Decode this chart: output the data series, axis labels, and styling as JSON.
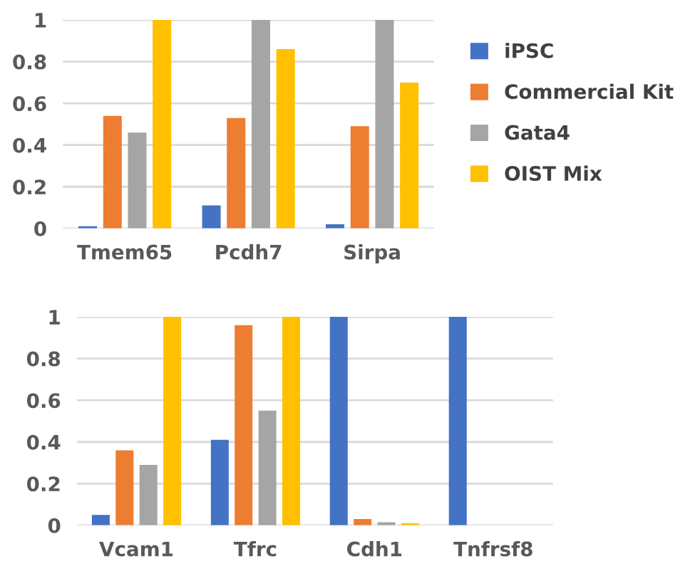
{
  "chart_data": [
    {
      "type": "bar",
      "categories": [
        "Tmem65",
        "Pcdh7",
        "Sirpa"
      ],
      "series": [
        {
          "name": "iPSC",
          "color": "#4472c4",
          "values": [
            0.01,
            0.11,
            0.02
          ]
        },
        {
          "name": "Commercial Kit",
          "color": "#ed7d31",
          "values": [
            0.54,
            0.53,
            0.49
          ]
        },
        {
          "name": "Gata4",
          "color": "#a5a5a5",
          "values": [
            0.46,
            1,
            1
          ]
        },
        {
          "name": "OIST Mix",
          "color": "#ffc000",
          "values": [
            1,
            0.86,
            0.7
          ]
        }
      ],
      "ylim": [
        0,
        1
      ],
      "yticks": [
        0,
        0.2,
        0.4,
        0.6,
        0.8,
        1
      ],
      "grid": "y",
      "legend": "right"
    },
    {
      "type": "bar",
      "categories": [
        "Vcam1",
        "Tfrc",
        "Cdh1",
        "Tnfrsf8"
      ],
      "series": [
        {
          "color": "#4472c4",
          "values": [
            0.05,
            0.41,
            1,
            1
          ]
        },
        {
          "color": "#ed7d31",
          "values": [
            0.36,
            0.96,
            0.03,
            0
          ]
        },
        {
          "color": "#a5a5a5",
          "values": [
            0.29,
            0.55,
            0.015,
            0
          ]
        },
        {
          "color": "#ffc000",
          "values": [
            1,
            1,
            0.01,
            0
          ]
        }
      ],
      "ylim": [
        0,
        1
      ],
      "yticks": [
        0,
        0.2,
        0.4,
        0.6,
        0.8,
        1
      ],
      "grid": "y"
    }
  ]
}
